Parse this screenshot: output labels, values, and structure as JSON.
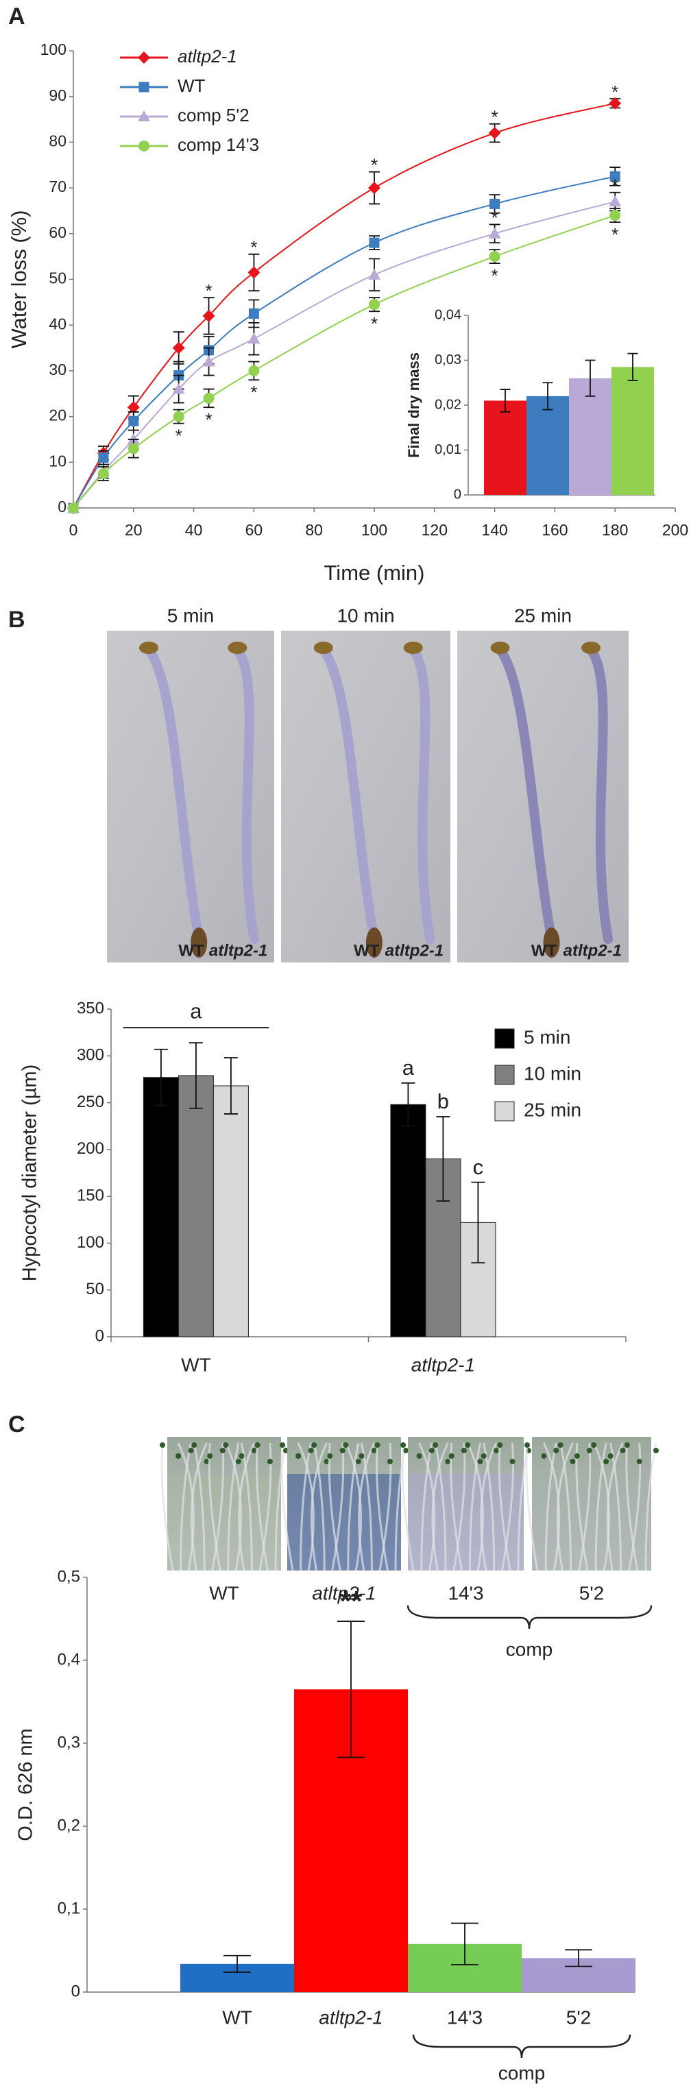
{
  "panels": {
    "a": "A",
    "b": "B",
    "c": "C"
  },
  "photos_b": {
    "times": [
      "5 min",
      "10 min",
      "25 min"
    ],
    "labels": [
      "WT",
      "atltp2-1"
    ]
  },
  "photos_c": {
    "labels": [
      "WT",
      "atltp2-1",
      "14'3",
      "5'2"
    ],
    "group": "comp"
  },
  "chart_data": [
    {
      "type": "line",
      "x_label": "Time (min)",
      "y_label": "Water loss (%)",
      "x": [
        0,
        10,
        20,
        35,
        45,
        60,
        100,
        140,
        180
      ],
      "xlim": [
        0,
        200
      ],
      "xticks": [
        0,
        20,
        40,
        60,
        80,
        100,
        120,
        140,
        160,
        180,
        200
      ],
      "ylim": [
        0,
        100
      ],
      "yticks": [
        0,
        10,
        20,
        30,
        40,
        50,
        60,
        70,
        80,
        90,
        100
      ],
      "grid": false,
      "legend": "upper left",
      "series": [
        {
          "name": "atltp2-1",
          "italic": true,
          "color": "#e8141b",
          "marker": "diamond",
          "values": [
            0,
            12,
            22,
            35,
            42,
            51.5,
            70,
            82,
            88.5
          ],
          "errors": [
            0,
            1.5,
            2.5,
            3.5,
            4,
            4,
            3.5,
            2,
            1
          ],
          "sig_labels": [
            null,
            null,
            null,
            null,
            "*",
            "*",
            "*",
            "*",
            "*"
          ],
          "sig_position": "above"
        },
        {
          "name": "WT",
          "color": "#3e7cc0",
          "marker": "square",
          "values": [
            0,
            11,
            19,
            29,
            34.5,
            42.5,
            58,
            66.5,
            72.5
          ],
          "errors": [
            0,
            1.5,
            2,
            3,
            3,
            3,
            1.5,
            2,
            2
          ]
        },
        {
          "name": "comp 5'2",
          "color": "#b8a9d6",
          "marker": "triangle",
          "values": [
            0,
            8,
            15,
            26,
            32,
            37,
            51,
            60,
            67
          ],
          "errors": [
            0,
            1.5,
            2,
            3,
            3,
            3.5,
            3.5,
            2,
            2
          ],
          "sig_labels": [
            null,
            null,
            null,
            null,
            null,
            null,
            null,
            "*",
            "*"
          ],
          "sig_position": "above"
        },
        {
          "name": "comp 14'3",
          "color": "#92d050",
          "marker": "circle",
          "values": [
            0,
            7.5,
            13,
            20,
            24,
            30,
            44.5,
            55,
            64
          ],
          "errors": [
            0,
            1.5,
            2,
            1.5,
            2,
            2,
            1.5,
            1.5,
            1.5
          ],
          "sig_labels": [
            null,
            null,
            null,
            "*",
            "*",
            "*",
            "*",
            "*",
            "*"
          ],
          "sig_position": "below"
        }
      ]
    },
    {
      "type": "bar",
      "y_label": "Final dry mass",
      "categories": [
        null,
        null,
        null,
        null
      ],
      "values": [
        0.021,
        0.022,
        0.026,
        0.0285
      ],
      "errors": [
        0.0025,
        0.003,
        0.004,
        0.003
      ],
      "colors": [
        "#e8141b",
        "#3e7cc0",
        "#b8a9d6",
        "#92d050"
      ],
      "ylim": [
        0,
        0.04
      ],
      "yticks": [
        0,
        {
          "value": 0.01,
          "label": "0,01"
        },
        {
          "value": 0.02,
          "label": "0,02"
        },
        {
          "value": 0.03,
          "label": "0,03"
        },
        {
          "value": 0.04,
          "label": "0,04"
        }
      ]
    },
    {
      "type": "bar",
      "y_label": "Hypocotyl diameter (µm)",
      "categories": [
        "WT",
        "atltp2-1"
      ],
      "category_italic": [
        false,
        true
      ],
      "series": [
        {
          "name": "5 min",
          "color": "#000000",
          "values": [
            277,
            248
          ],
          "errors": [
            30,
            23
          ],
          "letters": [
            null,
            "a"
          ]
        },
        {
          "name": "10 min",
          "color": "#808080",
          "values": [
            279,
            190
          ],
          "errors": [
            35,
            45
          ],
          "letters": [
            null,
            "b"
          ]
        },
        {
          "name": "25 min",
          "color": "#d9d9d9",
          "values": [
            268,
            122
          ],
          "errors": [
            30,
            43
          ],
          "letters": [
            null,
            "c"
          ]
        }
      ],
      "group_letters": [
        "a",
        null
      ],
      "ylim": [
        0,
        350
      ],
      "yticks": [
        0,
        50,
        100,
        150,
        200,
        250,
        300,
        350
      ],
      "legend": "upper right"
    },
    {
      "type": "bar",
      "y_label": "O.D. 626 nm",
      "categories": [
        "WT",
        "atltp2-1",
        "14'3",
        "5'2"
      ],
      "category_italic": [
        false,
        true,
        false,
        false
      ],
      "values": [
        0.034,
        0.365,
        0.058,
        0.041
      ],
      "errors": [
        0.01,
        0.082,
        0.025,
        0.01
      ],
      "colors": [
        "#1f6fc5",
        "#ff0000",
        "#77cc55",
        "#a89bd0"
      ],
      "value_annotations": [
        null,
        "**",
        null,
        null
      ],
      "bracket_label": "comp",
      "ylim": [
        0,
        0.5
      ],
      "yticks": [
        0,
        {
          "value": 0.1,
          "label": "0,1"
        },
        {
          "value": 0.2,
          "label": "0,2"
        },
        {
          "value": 0.3,
          "label": "0,3"
        },
        {
          "value": 0.4,
          "label": "0,4"
        },
        {
          "value": 0.5,
          "label": "0,5"
        }
      ]
    }
  ]
}
